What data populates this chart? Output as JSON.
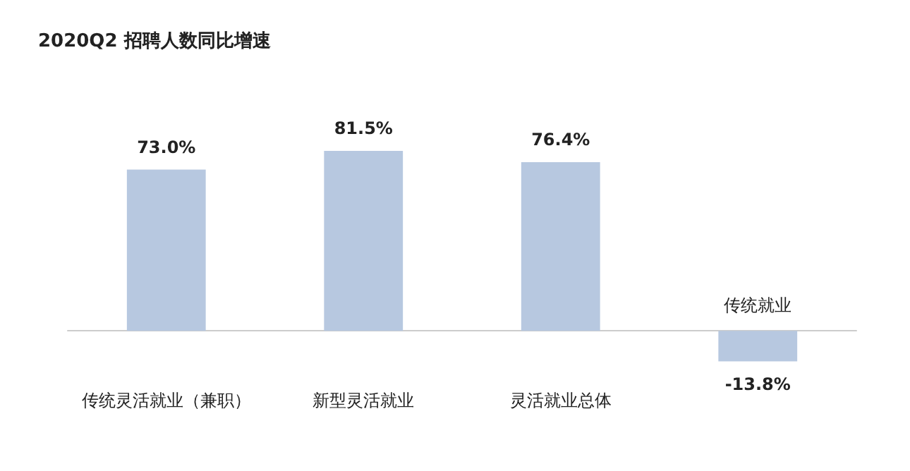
{
  "chart_data": {
    "type": "bar",
    "title": "2020Q2 招聘人数同比增速",
    "categories": [
      "传统灵活就业（兼职）",
      "新型灵活就业",
      "灵活就业总体",
      "传统就业"
    ],
    "values": [
      73.0,
      81.5,
      76.4,
      -13.8
    ],
    "value_labels": [
      "73.0%",
      "81.5%",
      "76.4%",
      "-13.8%"
    ],
    "color": "#b7c8e0"
  }
}
